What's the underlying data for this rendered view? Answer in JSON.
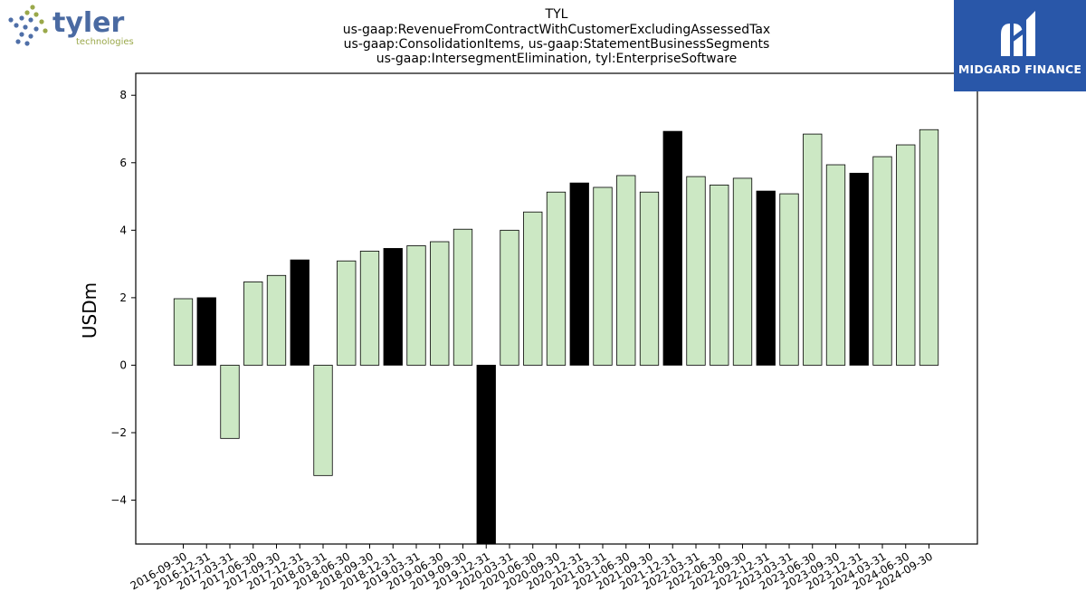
{
  "brand": {
    "name": "tyler",
    "subtitle": "technologies"
  },
  "partner": {
    "name": "MIDGARD FINANCE",
    "color": "#2957a9"
  },
  "colors": {
    "normal": "#cce8c4",
    "q4": "#000000",
    "axis": "#000000"
  },
  "chart_data": {
    "type": "bar",
    "title": "TYL",
    "subtitle": [
      "us-gaap:RevenueFromContractWithCustomerExcludingAssessedTax",
      "us-gaap:ConsolidationItems, us-gaap:StatementBusinessSegments",
      "us-gaap:IntersegmentElimination, tyl:EnterpriseSoftware"
    ],
    "ylabel": "USDm",
    "xlabel": "",
    "ylim": [
      -5.3,
      8.65
    ],
    "yticks": [
      -4,
      -2,
      0,
      2,
      4,
      6,
      8
    ],
    "categories": [
      "2016-09-30",
      "2016-12-31",
      "2017-03-31",
      "2017-06-30",
      "2017-09-30",
      "2017-12-31",
      "2018-03-31",
      "2018-06-30",
      "2018-09-30",
      "2018-12-31",
      "2019-03-31",
      "2019-06-30",
      "2019-09-30",
      "2019-12-31",
      "2020-03-31",
      "2020-06-30",
      "2020-09-30",
      "2020-12-31",
      "2021-03-31",
      "2021-06-30",
      "2021-09-30",
      "2021-12-31",
      "2022-03-31",
      "2022-06-30",
      "2022-09-30",
      "2022-12-31",
      "2023-03-31",
      "2023-06-30",
      "2023-09-30",
      "2023-12-31",
      "2024-03-31",
      "2024-06-30",
      "2024-09-30"
    ],
    "values": [
      1.97,
      2.0,
      -2.17,
      2.47,
      2.66,
      3.12,
      -3.27,
      3.09,
      3.38,
      3.46,
      3.54,
      3.66,
      4.03,
      -5.5,
      4.0,
      4.54,
      5.13,
      5.4,
      5.27,
      5.62,
      5.13,
      6.93,
      5.59,
      5.34,
      5.54,
      5.16,
      5.08,
      6.85,
      5.94,
      5.69,
      6.18,
      6.53,
      6.98
    ],
    "highlight": [
      false,
      true,
      false,
      false,
      false,
      true,
      false,
      false,
      false,
      true,
      false,
      false,
      false,
      true,
      false,
      false,
      false,
      true,
      false,
      false,
      false,
      true,
      false,
      false,
      false,
      true,
      false,
      false,
      false,
      true,
      false,
      false,
      false
    ]
  }
}
